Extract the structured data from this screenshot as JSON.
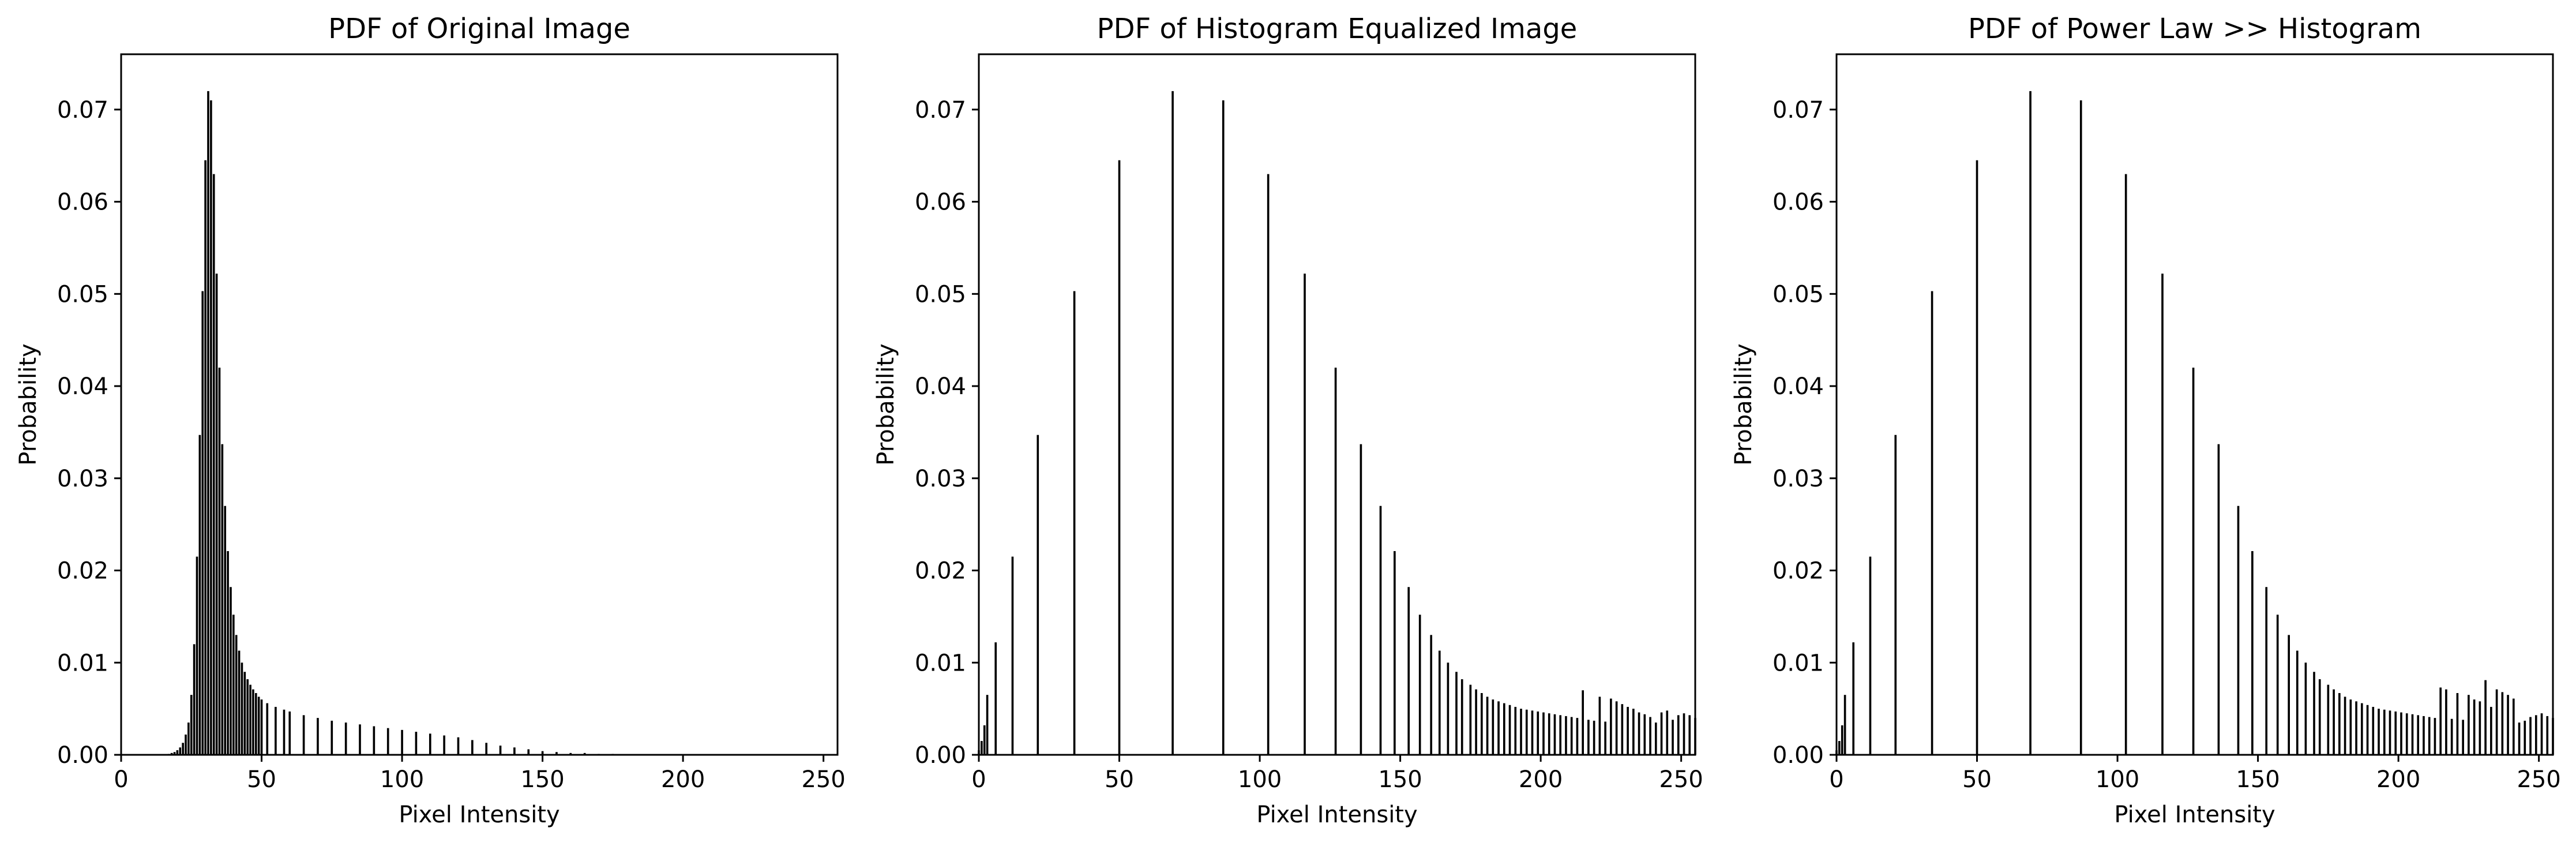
{
  "chart_data": [
    {
      "type": "bar",
      "title": "PDF of Original Image",
      "xlabel": "Pixel Intensity",
      "ylabel": "Probability",
      "xlim": [
        0,
        255
      ],
      "ylim": [
        0,
        0.076
      ],
      "xticks": [
        "0",
        "50",
        "100",
        "150",
        "200",
        "250"
      ],
      "yticks": [
        "0.00",
        "0.01",
        "0.02",
        "0.03",
        "0.04",
        "0.05",
        "0.06",
        "0.07"
      ],
      "grid": false,
      "legend": "none",
      "bar_color": "#000000",
      "x": [
        17,
        18,
        19,
        20,
        21,
        22,
        23,
        24,
        25,
        26,
        27,
        28,
        29,
        30,
        31,
        32,
        33,
        34,
        35,
        36,
        37,
        38,
        39,
        40,
        41,
        42,
        43,
        44,
        45,
        46,
        47,
        48,
        49,
        50,
        52,
        55,
        58,
        60,
        65,
        70,
        75,
        80,
        85,
        90,
        95,
        100,
        105,
        110,
        115,
        120,
        125,
        130,
        135,
        140,
        145,
        150,
        155,
        160,
        165,
        170,
        175,
        180,
        185,
        190,
        195,
        200,
        205,
        210,
        215,
        220,
        230,
        240,
        250
      ],
      "values": [
        0.0001,
        0.0002,
        0.0003,
        0.0005,
        0.0008,
        0.0013,
        0.0022,
        0.0035,
        0.0065,
        0.012,
        0.0215,
        0.0347,
        0.0503,
        0.0645,
        0.072,
        0.071,
        0.063,
        0.0522,
        0.042,
        0.0337,
        0.027,
        0.0221,
        0.0182,
        0.0152,
        0.013,
        0.0113,
        0.01,
        0.009,
        0.0082,
        0.0076,
        0.0071,
        0.0067,
        0.0063,
        0.006,
        0.0056,
        0.0052,
        0.0049,
        0.0047,
        0.0043,
        0.004,
        0.0037,
        0.0035,
        0.0033,
        0.0031,
        0.0029,
        0.0027,
        0.0025,
        0.0023,
        0.0021,
        0.0019,
        0.0016,
        0.0013,
        0.001,
        0.0008,
        0.0006,
        0.0004,
        0.0003,
        0.0002,
        0.0002,
        0.0001,
        0.0001,
        8e-05,
        6e-05,
        4e-05,
        3e-05,
        2e-05,
        1e-05,
        1e-05,
        5e-06,
        3e-06,
        2e-06,
        1e-06,
        1e-06
      ]
    },
    {
      "type": "bar",
      "title": "PDF of Histogram Equalized Image",
      "xlabel": "Pixel Intensity",
      "ylabel": "Probability",
      "xlim": [
        0,
        255
      ],
      "ylim": [
        0,
        0.076
      ],
      "xticks": [
        "0",
        "50",
        "100",
        "150",
        "200",
        "250"
      ],
      "yticks": [
        "0.00",
        "0.01",
        "0.02",
        "0.03",
        "0.04",
        "0.05",
        "0.06",
        "0.07"
      ],
      "grid": false,
      "legend": "none",
      "bar_color": "#000000",
      "x": [
        0,
        1,
        2,
        3,
        6,
        12,
        21,
        34,
        50,
        69,
        87,
        103,
        116,
        127,
        136,
        143,
        148,
        153,
        157,
        161,
        164,
        167,
        170,
        172,
        175,
        177,
        179,
        181,
        183,
        185,
        187,
        189,
        191,
        193,
        195,
        197,
        199,
        201,
        203,
        205,
        207,
        209,
        211,
        213,
        215,
        217,
        219,
        221,
        223,
        225,
        227,
        229,
        231,
        233,
        235,
        237,
        239,
        241,
        243,
        245,
        247,
        249,
        251,
        253,
        255
      ],
      "values": [
        0.0005,
        0.0015,
        0.0032,
        0.0065,
        0.0122,
        0.0215,
        0.0347,
        0.0503,
        0.0645,
        0.072,
        0.071,
        0.063,
        0.0522,
        0.042,
        0.0337,
        0.027,
        0.0221,
        0.0182,
        0.0152,
        0.013,
        0.0113,
        0.01,
        0.009,
        0.0082,
        0.0076,
        0.0071,
        0.0067,
        0.0063,
        0.006,
        0.0058,
        0.0056,
        0.0054,
        0.0052,
        0.005,
        0.0049,
        0.0048,
        0.0047,
        0.0046,
        0.0045,
        0.0044,
        0.0043,
        0.0042,
        0.0041,
        0.004,
        0.007,
        0.0038,
        0.0037,
        0.0063,
        0.0036,
        0.0061,
        0.0058,
        0.0055,
        0.0052,
        0.005,
        0.0046,
        0.0044,
        0.0041,
        0.0035,
        0.0046,
        0.0048,
        0.0038,
        0.0043,
        0.0045,
        0.0043,
        0.004
      ]
    },
    {
      "type": "bar",
      "title": "PDF of Power Law >> Histogram",
      "xlabel": "Pixel Intensity",
      "ylabel": "Probability",
      "xlim": [
        0,
        255
      ],
      "ylim": [
        0,
        0.076
      ],
      "xticks": [
        "0",
        "50",
        "100",
        "150",
        "200",
        "250"
      ],
      "yticks": [
        "0.00",
        "0.01",
        "0.02",
        "0.03",
        "0.04",
        "0.05",
        "0.06",
        "0.07"
      ],
      "grid": false,
      "legend": "none",
      "bar_color": "#000000",
      "x": [
        0,
        1,
        2,
        3,
        6,
        12,
        21,
        34,
        50,
        69,
        87,
        103,
        116,
        127,
        136,
        143,
        148,
        153,
        157,
        161,
        164,
        167,
        170,
        172,
        175,
        177,
        179,
        181,
        183,
        185,
        187,
        189,
        191,
        193,
        195,
        197,
        199,
        201,
        203,
        205,
        207,
        209,
        211,
        213,
        215,
        217,
        219,
        221,
        223,
        225,
        227,
        229,
        231,
        233,
        235,
        237,
        239,
        241,
        243,
        245,
        247,
        249,
        251,
        253,
        255
      ],
      "values": [
        0.0005,
        0.0015,
        0.0032,
        0.0065,
        0.0122,
        0.0215,
        0.0347,
        0.0503,
        0.0645,
        0.072,
        0.071,
        0.063,
        0.0522,
        0.042,
        0.0337,
        0.027,
        0.0221,
        0.0182,
        0.0152,
        0.013,
        0.0113,
        0.01,
        0.009,
        0.0082,
        0.0076,
        0.0071,
        0.0067,
        0.0063,
        0.006,
        0.0058,
        0.0056,
        0.0054,
        0.0052,
        0.005,
        0.0049,
        0.0048,
        0.0047,
        0.0046,
        0.0045,
        0.0044,
        0.0043,
        0.0042,
        0.0041,
        0.004,
        0.0073,
        0.0071,
        0.0039,
        0.0067,
        0.0038,
        0.0065,
        0.006,
        0.0058,
        0.0081,
        0.0052,
        0.0071,
        0.0068,
        0.0065,
        0.0061,
        0.0035,
        0.0037,
        0.0041,
        0.0043,
        0.0045,
        0.0042,
        0.004
      ]
    }
  ]
}
